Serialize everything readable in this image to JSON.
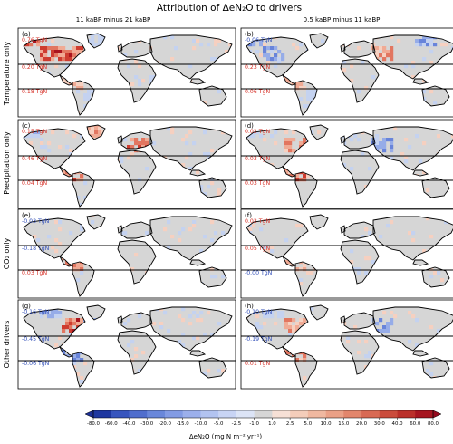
{
  "chart_data": {
    "type": "heatmap",
    "title": "Attribution of ΔeN₂O to drivers",
    "columns": [
      "11 kaBP minus 21 kaBP",
      "0.5 kaBP minus 11 kaBP"
    ],
    "rows": [
      "Temperature only",
      "Precipitation only",
      "CO₂ only",
      "Other drivers"
    ],
    "panels": [
      {
        "label": "(a)",
        "values": [
          "0.76 TgN",
          "0.20 TgN",
          "0.18 TgN"
        ]
      },
      {
        "label": "(b)",
        "values": [
          "-0.06 TgN",
          "0.23 TgN",
          "0.06 TgN"
        ]
      },
      {
        "label": "(c)",
        "values": [
          "0.15 TgN",
          "0.46 TgN",
          "0.04 TgN"
        ]
      },
      {
        "label": "(d)",
        "values": [
          "0.02 TgN",
          "0.03 TgN",
          "0.03 TgN"
        ]
      },
      {
        "label": "(e)",
        "values": [
          "-0.03 TgN",
          "-0.18 TgN",
          "0.03 TgN"
        ]
      },
      {
        "label": "(f)",
        "values": [
          "0.02 TgN",
          "0.05 TgN",
          "-0.00 TgN"
        ]
      },
      {
        "label": "(g)",
        "values": [
          "-0.16 TgN",
          "-0.45 TgN",
          "-0.06 TgN"
        ]
      },
      {
        "label": "(h)",
        "values": [
          "-0.10 TgN",
          "-0.19 TgN",
          "0.01 TgN"
        ]
      }
    ],
    "colorbar": {
      "label": "ΔeN₂O (mg N m⁻² yr⁻¹)",
      "ticks": [
        "-80.0",
        "-60.0",
        "-40.0",
        "-30.0",
        "-20.0",
        "-15.0",
        "-10.0",
        "-5.0",
        "-2.5",
        "-1.0",
        "1.0",
        "2.5",
        "5.0",
        "10.0",
        "15.0",
        "20.0",
        "30.0",
        "40.0",
        "60.0",
        "80.0"
      ]
    },
    "colors": {
      "positive": "#d73027",
      "negative": "#2d4bb7",
      "neutral": "#d4d4d4"
    }
  }
}
